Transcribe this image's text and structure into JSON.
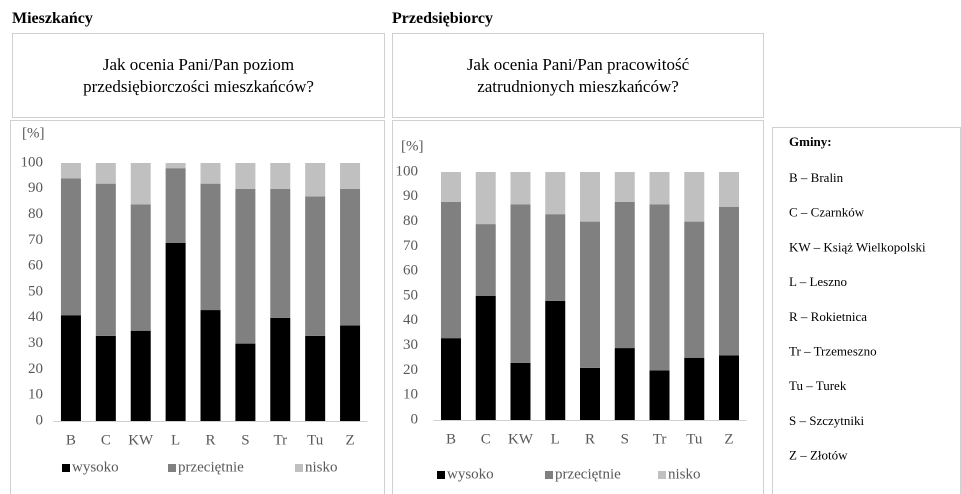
{
  "chart_data": [
    {
      "type": "stacked_bar",
      "heading": "Mieszkańcy",
      "title": "Jak ocenia Pani/Pan poziom przedsiębiorczości mieszkańców?",
      "ylabel": "[%]",
      "categories": [
        "B",
        "C",
        "KW",
        "L",
        "R",
        "S",
        "Tr",
        "Tu",
        "Z"
      ],
      "series": [
        {
          "name": "wysoko",
          "color": "#000000",
          "values": [
            41,
            33,
            35,
            69,
            43,
            30,
            40,
            33,
            37
          ]
        },
        {
          "name": "przeciętnie",
          "color": "#808080",
          "values": [
            53,
            59,
            49,
            29,
            49,
            60,
            50,
            54,
            53
          ]
        },
        {
          "name": "nisko",
          "color": "#c0c0c0",
          "values": [
            6,
            8,
            16,
            2,
            8,
            10,
            10,
            13,
            10
          ]
        }
      ],
      "ylim": [
        0,
        100
      ],
      "yticks": [
        0,
        10,
        20,
        30,
        40,
        50,
        60,
        70,
        80,
        90,
        100
      ],
      "grid": false,
      "legend": "bottom"
    },
    {
      "type": "stacked_bar",
      "heading": "Przedsiębiorcy",
      "title": "Jak ocenia Pani/Pan pracowitość zatrudnionych mieszkańców?",
      "ylabel": "[%]",
      "categories": [
        "B",
        "C",
        "KW",
        "L",
        "R",
        "S",
        "Tr",
        "Tu",
        "Z"
      ],
      "series": [
        {
          "name": "wysoko",
          "color": "#000000",
          "values": [
            33,
            50,
            23,
            48,
            21,
            29,
            20,
            25,
            26
          ]
        },
        {
          "name": "przeciętnie",
          "color": "#808080",
          "values": [
            55,
            29,
            64,
            35,
            59,
            59,
            67,
            55,
            60
          ]
        },
        {
          "name": "nisko",
          "color": "#c0c0c0",
          "values": [
            12,
            21,
            13,
            17,
            20,
            12,
            13,
            20,
            14
          ]
        }
      ],
      "ylim": [
        0,
        100
      ],
      "yticks": [
        0,
        10,
        20,
        30,
        40,
        50,
        60,
        70,
        80,
        90,
        100
      ],
      "grid": false,
      "legend": "bottom"
    }
  ],
  "key_box": {
    "title": "Gminy:",
    "items": [
      "B – Bralin",
      "C – Czarnków",
      "KW – Książ Wielkopolski",
      "L – Leszno",
      "R – Rokietnica",
      "Tr – Trzemeszno",
      "Tu – Turek",
      "S – Szczytniki",
      "Z – Złotów"
    ]
  }
}
